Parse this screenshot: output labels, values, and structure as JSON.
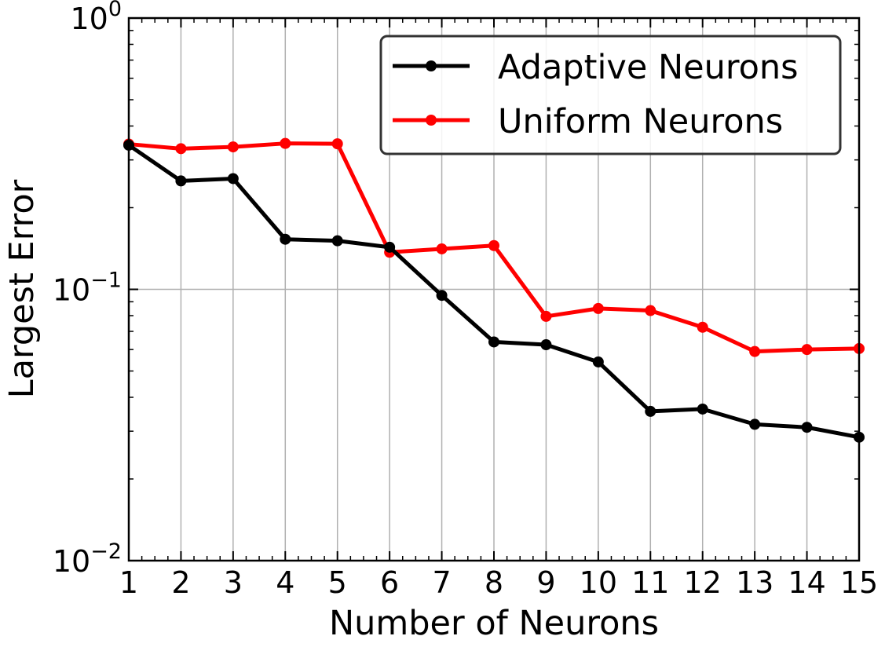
{
  "chart_data": {
    "type": "line",
    "xlabel": "Number of Neurons",
    "ylabel": "Largest Error",
    "yscale": "log",
    "xlim": [
      1,
      15
    ],
    "ylim": [
      0.01,
      1
    ],
    "grid": true,
    "legend_position": "top-right",
    "x": [
      1,
      2,
      3,
      4,
      5,
      6,
      7,
      8,
      9,
      10,
      11,
      12,
      13,
      14,
      15
    ],
    "xtick_labels": [
      "1",
      "2",
      "3",
      "4",
      "5",
      "6",
      "7",
      "8",
      "9",
      "10",
      "11",
      "12",
      "13",
      "14",
      "15"
    ],
    "ytick_labels": [
      {
        "value": 1,
        "base": "10",
        "exp": "0"
      },
      {
        "value": 0.1,
        "base": "10",
        "exp": "−1"
      },
      {
        "value": 0.01,
        "base": "10",
        "exp": "−2"
      }
    ],
    "series": [
      {
        "name": "Adaptive Neurons",
        "color": "#000000",
        "values": [
          0.34,
          0.251,
          0.256,
          0.153,
          0.151,
          0.143,
          0.095,
          0.064,
          0.0625,
          0.054,
          0.0355,
          0.0362,
          0.0318,
          0.031,
          0.0285
        ]
      },
      {
        "name": "Uniform Neurons",
        "color": "#ff0000",
        "values": [
          0.343,
          0.33,
          0.335,
          0.345,
          0.344,
          0.137,
          0.141,
          0.145,
          0.0795,
          0.085,
          0.0835,
          0.0725,
          0.059,
          0.06,
          0.0605
        ]
      }
    ]
  }
}
